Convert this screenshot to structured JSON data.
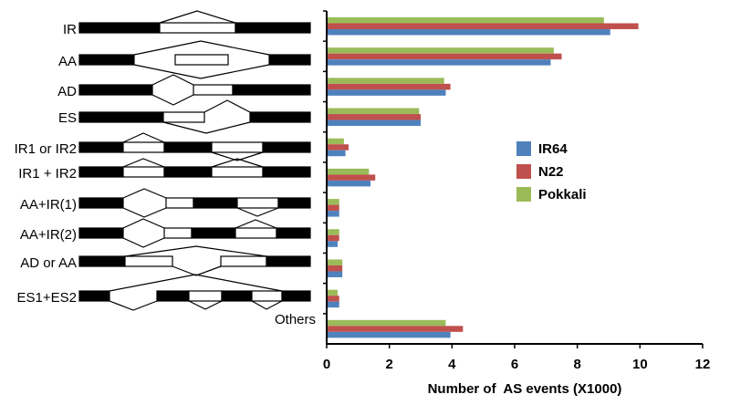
{
  "chart_data": {
    "type": "bar",
    "orientation": "horizontal",
    "categories": [
      "IR",
      "AA",
      "AD",
      "ES",
      "IR1 or IR2",
      "IR1 + IR2",
      "AA+IR(1)",
      "AA+IR(2)",
      "AD or AA",
      "ES1+ES2",
      "Others"
    ],
    "series": [
      {
        "name": "IR64",
        "color": "#4f81bd",
        "values": [
          9.05,
          7.15,
          3.8,
          3.0,
          0.6,
          1.4,
          0.4,
          0.35,
          0.5,
          0.4,
          3.95
        ]
      },
      {
        "name": "N22",
        "color": "#c0504d",
        "values": [
          9.95,
          7.5,
          3.95,
          3.0,
          0.7,
          1.55,
          0.4,
          0.4,
          0.5,
          0.4,
          4.35
        ]
      },
      {
        "name": "Pokkali",
        "color": "#9bbb59",
        "values": [
          8.85,
          7.25,
          3.75,
          2.95,
          0.55,
          1.35,
          0.4,
          0.4,
          0.5,
          0.35,
          3.8
        ]
      }
    ],
    "title": "",
    "xlabel": "Number of  AS events (X1000)",
    "ylabel": "",
    "xlim": [
      0,
      12
    ],
    "xticks": [
      "0",
      "2",
      "4",
      "6",
      "8",
      "10",
      "12"
    ],
    "grid": false,
    "legend": "right"
  }
}
